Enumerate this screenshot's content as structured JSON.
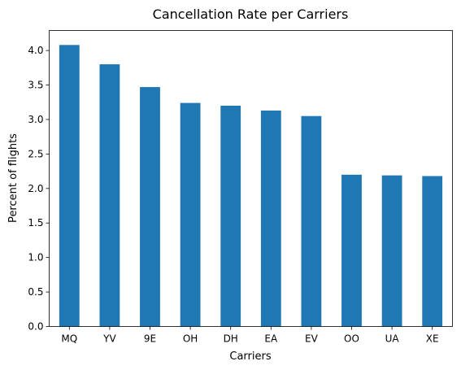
{
  "chart_data": {
    "type": "bar",
    "title": "Cancellation Rate per Carriers",
    "xlabel": "Carriers",
    "ylabel": "Percent of flights",
    "categories": [
      "MQ",
      "YV",
      "9E",
      "OH",
      "DH",
      "EA",
      "EV",
      "OO",
      "UA",
      "XE"
    ],
    "values": [
      4.08,
      3.8,
      3.47,
      3.24,
      3.2,
      3.13,
      3.05,
      2.2,
      2.19,
      2.18
    ],
    "ylim": [
      0,
      4.29
    ],
    "yticks": [
      0.0,
      0.5,
      1.0,
      1.5,
      2.0,
      2.5,
      3.0,
      3.5,
      4.0
    ],
    "ytick_labels": [
      "0.0",
      "0.5",
      "1.0",
      "1.5",
      "2.0",
      "2.5",
      "3.0",
      "3.5",
      "4.0"
    ],
    "grid": false,
    "legend": "none",
    "bar_color": "#1f77b4"
  }
}
